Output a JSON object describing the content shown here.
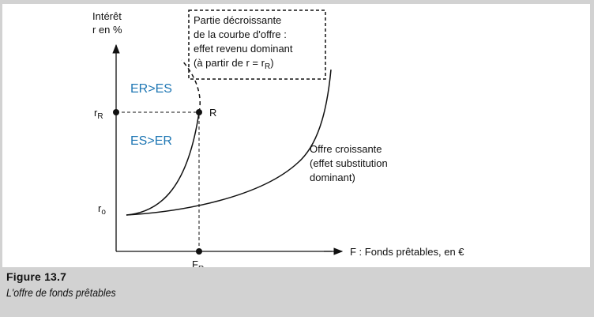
{
  "diagram": {
    "y_axis_label_line1": "Intérêt",
    "y_axis_label_line2": "r en %",
    "x_axis_label": "F : Fonds prêtables, en €",
    "r_R_main": "r",
    "r_R_sub": "R",
    "r_o_main": "r",
    "r_o_sub": "o",
    "F_R_main": "F",
    "F_R_sub": "R",
    "point_R_label": "R",
    "region_upper": "ER>ES",
    "region_lower": "ES>ER",
    "note_box_lines": [
      "Partie décroissante",
      "de la courbe d'offre :",
      "effet revenu dominant",
      "(à partir de r = r"
    ],
    "note_box_sub": "R",
    "note_box_close": ")",
    "curve_label_lines": [
      "Offre croissante",
      "(effet substitution",
      "dominant)"
    ]
  },
  "caption": {
    "figure_number": "Figure 13.7",
    "figure_title": "L'offre de fonds prêtables"
  },
  "colors": {
    "region_text": "#1f77b4",
    "caption_band": "#d2d2d2",
    "plot_background": "#ffffff"
  }
}
